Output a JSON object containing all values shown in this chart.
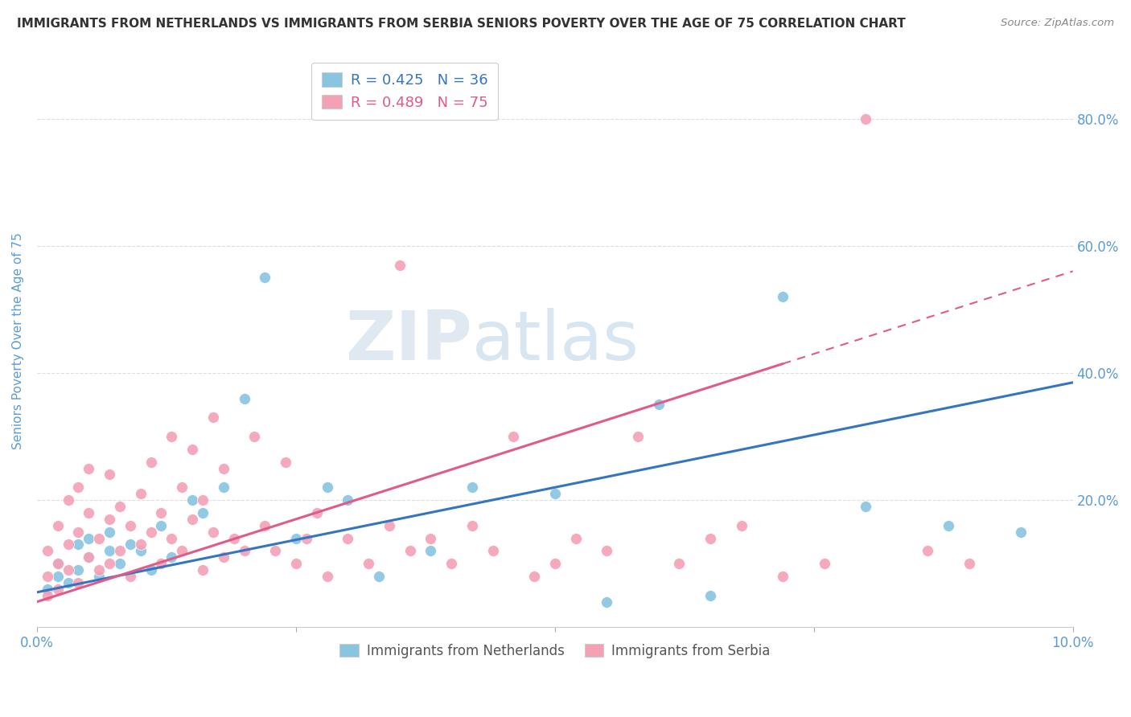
{
  "title": "IMMIGRANTS FROM NETHERLANDS VS IMMIGRANTS FROM SERBIA SENIORS POVERTY OVER THE AGE OF 75 CORRELATION CHART",
  "source": "Source: ZipAtlas.com",
  "ylabel": "Seniors Poverty Over the Age of 75",
  "xlim": [
    0.0,
    0.1
  ],
  "ylim": [
    0.0,
    0.9
  ],
  "ytick_labels": [
    "",
    "20.0%",
    "40.0%",
    "60.0%",
    "80.0%"
  ],
  "ytick_values": [
    0.0,
    0.2,
    0.4,
    0.6,
    0.8
  ],
  "color_netherlands": "#89c4e1",
  "color_serbia": "#f4a0b5",
  "regression_color_netherlands": "#3575c0",
  "regression_color_serbia": "#e05a8a",
  "R_netherlands": 0.425,
  "N_netherlands": 36,
  "R_serbia": 0.489,
  "N_serbia": 75,
  "watermark_zip": "ZIP",
  "watermark_atlas": "atlas",
  "background_color": "#ffffff",
  "grid_color": "#dddddd",
  "axis_label_color": "#5b9bd5",
  "nl_intercept": 0.055,
  "nl_slope": 3.3,
  "sr_intercept": 0.04,
  "sr_slope": 5.2,
  "netherlands_x": [
    0.001,
    0.002,
    0.002,
    0.003,
    0.004,
    0.004,
    0.005,
    0.005,
    0.006,
    0.007,
    0.007,
    0.008,
    0.009,
    0.01,
    0.011,
    0.012,
    0.013,
    0.015,
    0.016,
    0.018,
    0.02,
    0.022,
    0.025,
    0.028,
    0.03,
    0.033,
    0.038,
    0.042,
    0.05,
    0.055,
    0.06,
    0.065,
    0.072,
    0.08,
    0.088,
    0.095
  ],
  "netherlands_y": [
    0.06,
    0.08,
    0.1,
    0.07,
    0.09,
    0.13,
    0.11,
    0.14,
    0.08,
    0.12,
    0.15,
    0.1,
    0.13,
    0.12,
    0.09,
    0.16,
    0.11,
    0.2,
    0.18,
    0.22,
    0.36,
    0.55,
    0.14,
    0.22,
    0.2,
    0.08,
    0.12,
    0.22,
    0.21,
    0.04,
    0.35,
    0.05,
    0.52,
    0.19,
    0.16,
    0.15
  ],
  "serbia_x": [
    0.001,
    0.001,
    0.001,
    0.002,
    0.002,
    0.002,
    0.003,
    0.003,
    0.003,
    0.004,
    0.004,
    0.004,
    0.005,
    0.005,
    0.005,
    0.006,
    0.006,
    0.007,
    0.007,
    0.007,
    0.008,
    0.008,
    0.009,
    0.009,
    0.01,
    0.01,
    0.011,
    0.011,
    0.012,
    0.012,
    0.013,
    0.013,
    0.014,
    0.014,
    0.015,
    0.015,
    0.016,
    0.016,
    0.017,
    0.017,
    0.018,
    0.018,
    0.019,
    0.02,
    0.021,
    0.022,
    0.023,
    0.024,
    0.025,
    0.026,
    0.027,
    0.028,
    0.03,
    0.032,
    0.034,
    0.035,
    0.036,
    0.038,
    0.04,
    0.042,
    0.044,
    0.046,
    0.048,
    0.05,
    0.052,
    0.055,
    0.058,
    0.062,
    0.065,
    0.068,
    0.072,
    0.076,
    0.08,
    0.086,
    0.09
  ],
  "serbia_y": [
    0.05,
    0.08,
    0.12,
    0.06,
    0.1,
    0.16,
    0.09,
    0.13,
    0.2,
    0.07,
    0.15,
    0.22,
    0.11,
    0.18,
    0.25,
    0.09,
    0.14,
    0.1,
    0.17,
    0.24,
    0.12,
    0.19,
    0.08,
    0.16,
    0.13,
    0.21,
    0.15,
    0.26,
    0.1,
    0.18,
    0.14,
    0.3,
    0.12,
    0.22,
    0.17,
    0.28,
    0.09,
    0.2,
    0.15,
    0.33,
    0.11,
    0.25,
    0.14,
    0.12,
    0.3,
    0.16,
    0.12,
    0.26,
    0.1,
    0.14,
    0.18,
    0.08,
    0.14,
    0.1,
    0.16,
    0.57,
    0.12,
    0.14,
    0.1,
    0.16,
    0.12,
    0.3,
    0.08,
    0.1,
    0.14,
    0.12,
    0.3,
    0.1,
    0.14,
    0.16,
    0.08,
    0.1,
    0.8,
    0.12,
    0.1
  ]
}
